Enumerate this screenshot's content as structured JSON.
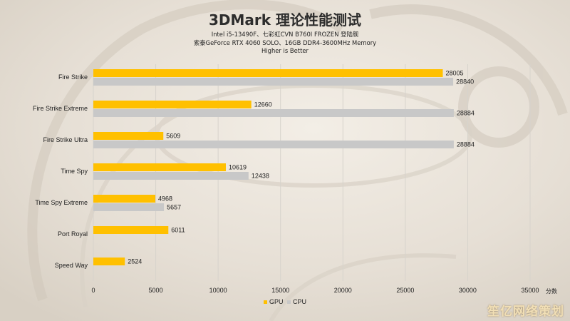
{
  "colors": {
    "gpu": "#ffc000",
    "cpu": "#c8c8c8",
    "grid": "#d7d3cc",
    "text": "#222222"
  },
  "chart_data": {
    "type": "bar",
    "orientation": "horizontal",
    "title": "3DMark 理论性能测试",
    "subtitle_lines": [
      "Intel i5-13490F、七彩虹CVN B760I FROZEN 登陆舰",
      "索泰GeForce RTX 4060 SOLO、16GB DDR4-3600MHz Memory",
      "Higher is Better"
    ],
    "categories": [
      "Fire Strike",
      "Fire Strike Extreme",
      "Fire Strike Ultra",
      "Time Spy",
      "Time Spy Extreme",
      "Port Royal",
      "Speed Way"
    ],
    "series": [
      {
        "name": "GPU",
        "values": [
          28005,
          12660,
          5609,
          10619,
          4968,
          6011,
          2524
        ]
      },
      {
        "name": "CPU",
        "values": [
          28840,
          28884,
          28884,
          12438,
          5657,
          null,
          null
        ]
      }
    ],
    "xlim": [
      0,
      35000
    ],
    "x_ticks": [
      0,
      5000,
      10000,
      15000,
      20000,
      25000,
      30000,
      35000
    ],
    "x_unit": "分数",
    "grid": true,
    "legend_position": "bottom-center"
  },
  "watermark": "笙亿网络策划"
}
